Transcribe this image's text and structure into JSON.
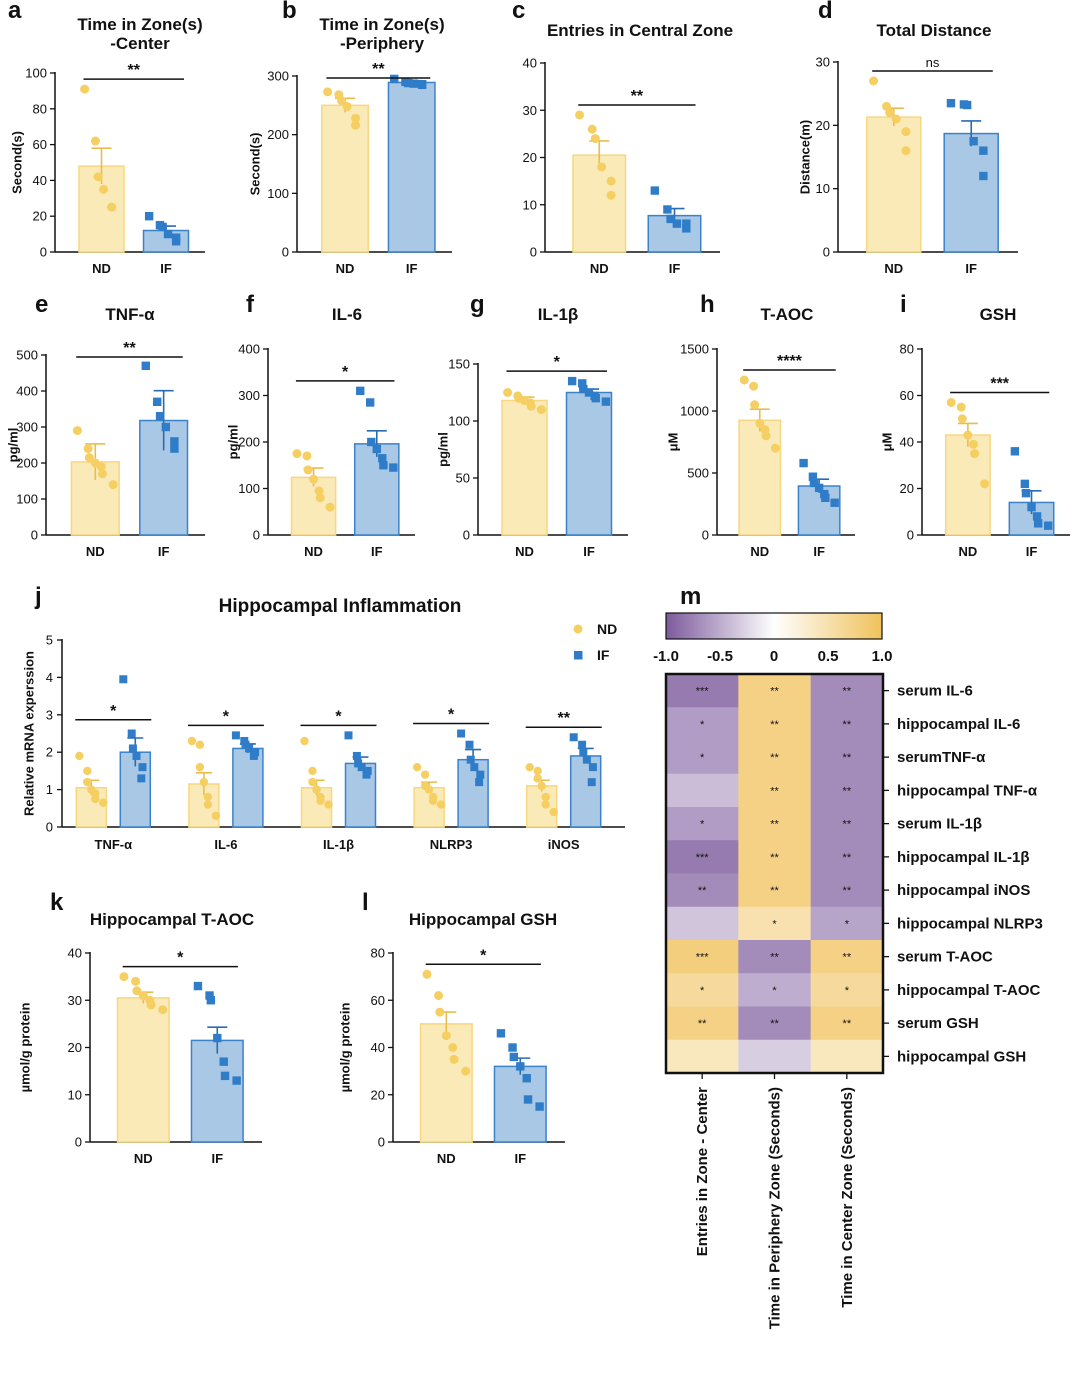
{
  "colors": {
    "ND": "#f7d77f",
    "ND_fill": "#faeab8",
    "IF": "#3b82c9",
    "IF_fill": "#a9c8e6",
    "low": "#7c5a9c",
    "mid": "#ffffff",
    "high": "#f0c25c"
  },
  "legend": {
    "nd": "ND",
    "if": "IF"
  },
  "chart_data": [
    {
      "id": "a",
      "letter": "a",
      "type": "bar",
      "title": [
        "Time in Zone(s)",
        "-Center"
      ],
      "ylabel": "Second(s)",
      "ylim": [
        0,
        100
      ],
      "yticks": [
        0,
        20,
        40,
        60,
        80,
        100
      ],
      "categories": [
        "ND",
        "IF"
      ],
      "values": [
        48,
        12
      ],
      "errors": [
        10,
        2.5
      ],
      "sig": "**",
      "points": [
        [
          91,
          62,
          42,
          35,
          25,
          25
        ],
        [
          20,
          15,
          14,
          10,
          8,
          6
        ]
      ]
    },
    {
      "id": "b",
      "letter": "b",
      "type": "bar",
      "title": [
        "Time in Zone(s)",
        "-Periphery"
      ],
      "ylabel": "Second(s)",
      "ylim": [
        0,
        300
      ],
      "yticks": [
        0,
        100,
        200,
        300
      ],
      "categories": [
        "ND",
        "IF"
      ],
      "values": [
        250,
        289
      ],
      "errors": [
        12,
        3
      ],
      "sig": "**",
      "points": [
        [
          273,
          268,
          258,
          248,
          228,
          216
        ],
        [
          295,
          290,
          288,
          287,
          286,
          285
        ]
      ]
    },
    {
      "id": "c",
      "letter": "c",
      "type": "bar",
      "title": [
        "Entries in Central Zone"
      ],
      "ylabel": "",
      "ylim": [
        0,
        40
      ],
      "yticks": [
        0,
        10,
        20,
        30,
        40
      ],
      "categories": [
        "ND",
        "IF"
      ],
      "values": [
        20.5,
        7.7
      ],
      "errors": [
        3,
        1.5
      ],
      "sig": "**",
      "points": [
        [
          29,
          26,
          24,
          18,
          15,
          12
        ],
        [
          13,
          9,
          7,
          6,
          6,
          5
        ]
      ]
    },
    {
      "id": "d",
      "letter": "d",
      "type": "bar",
      "title": [
        "Total Distance"
      ],
      "ylabel": "Distance(m)",
      "ylim": [
        0,
        30
      ],
      "yticks": [
        0,
        10,
        20,
        30
      ],
      "categories": [
        "ND",
        "IF"
      ],
      "values": [
        21.3,
        18.7
      ],
      "errors": [
        1.4,
        2
      ],
      "sig": "ns",
      "points": [
        [
          27,
          23,
          22,
          21,
          19,
          16
        ],
        [
          23.5,
          23.3,
          23.2,
          17.5,
          16,
          12
        ]
      ]
    },
    {
      "id": "e",
      "letter": "e",
      "type": "bar",
      "title": [
        "TNF-α"
      ],
      "ylabel": "pg/ml",
      "ylim": [
        0,
        500
      ],
      "yticks": [
        0,
        100,
        200,
        300,
        400,
        500
      ],
      "categories": [
        "ND",
        "IF"
      ],
      "values": [
        203,
        318
      ],
      "errors": [
        50,
        83
      ],
      "sig": "**",
      "points": [
        [
          290,
          240,
          215,
          200,
          190,
          170,
          140
        ],
        [
          470,
          370,
          330,
          300,
          260,
          240
        ]
      ]
    },
    {
      "id": "f",
      "letter": "f",
      "type": "bar",
      "title": [
        "IL-6"
      ],
      "ylabel": "pg/ml",
      "ylim": [
        0,
        400
      ],
      "yticks": [
        0,
        100,
        200,
        300,
        400
      ],
      "categories": [
        "ND",
        "IF"
      ],
      "values": [
        124,
        196
      ],
      "errors": [
        20,
        28
      ],
      "sig": "*",
      "points": [
        [
          175,
          170,
          140,
          120,
          95,
          80,
          60
        ],
        [
          310,
          285,
          200,
          185,
          165,
          150,
          145
        ]
      ]
    },
    {
      "id": "g",
      "letter": "g",
      "type": "bar",
      "title": [
        "IL-1β"
      ],
      "ylabel": "pg/ml",
      "ylim": [
        0,
        150
      ],
      "yticks": [
        0,
        50,
        100,
        150
      ],
      "categories": [
        "ND",
        "IF"
      ],
      "values": [
        118,
        125
      ],
      "errors": [
        3,
        3
      ],
      "sig": "*",
      "points": [
        [
          125,
          122,
          120,
          118,
          116,
          113,
          110
        ],
        [
          135,
          133,
          128,
          125,
          122,
          120,
          117
        ]
      ]
    },
    {
      "id": "h",
      "letter": "h",
      "type": "bar",
      "title": [
        "T-AOC"
      ],
      "ylabel": "μM",
      "ylim": [
        0,
        1500
      ],
      "yticks": [
        0,
        500,
        1000,
        1500
      ],
      "categories": [
        "ND",
        "IF"
      ],
      "values": [
        925,
        395
      ],
      "errors": [
        90,
        55
      ],
      "sig": "****",
      "points": [
        [
          1250,
          1200,
          1050,
          900,
          850,
          800,
          700
        ],
        [
          580,
          470,
          420,
          380,
          330,
          300,
          260
        ]
      ]
    },
    {
      "id": "i",
      "letter": "i",
      "type": "bar",
      "title": [
        "GSH"
      ],
      "ylabel": "μM",
      "ylim": [
        0,
        80
      ],
      "yticks": [
        0,
        20,
        40,
        60,
        80
      ],
      "categories": [
        "ND",
        "IF"
      ],
      "values": [
        43,
        14
      ],
      "errors": [
        5,
        5
      ],
      "sig": "***",
      "points": [
        [
          57,
          55,
          50,
          43,
          39,
          35,
          22
        ],
        [
          36,
          22,
          18,
          12,
          8,
          5,
          4
        ]
      ]
    },
    {
      "id": "k",
      "letter": "k",
      "type": "bar",
      "title": [
        "Hippocampal T-AOC"
      ],
      "ylabel": "µmol/g protein",
      "ylim": [
        0,
        40
      ],
      "yticks": [
        0,
        10,
        20,
        30,
        40
      ],
      "categories": [
        "ND",
        "IF"
      ],
      "values": [
        30.5,
        21.5
      ],
      "errors": [
        1.2,
        2.8
      ],
      "sig": "*",
      "points": [
        [
          35,
          34,
          32,
          31,
          30,
          29,
          28
        ],
        [
          33,
          31,
          30,
          22,
          17,
          14,
          13
        ]
      ]
    },
    {
      "id": "l",
      "letter": "l",
      "type": "bar",
      "title": [
        "Hippocampal GSH"
      ],
      "ylabel": "µmol/g protein",
      "ylim": [
        0,
        80
      ],
      "yticks": [
        0,
        20,
        40,
        60,
        80
      ],
      "categories": [
        "ND",
        "IF"
      ],
      "values": [
        50,
        32
      ],
      "errors": [
        5,
        3.5
      ],
      "sig": "*",
      "points": [
        [
          71,
          62,
          55,
          45,
          40,
          35,
          30
        ],
        [
          46,
          40,
          36,
          32,
          27,
          18,
          15
        ]
      ]
    },
    {
      "id": "j",
      "letter": "j",
      "type": "grouped-bar",
      "title": [
        "Hippocampal Inflammation"
      ],
      "ylabel": "Relative mRNA experssion",
      "ylim": [
        0,
        5
      ],
      "yticks": [
        0,
        1,
        2,
        3,
        4,
        5
      ],
      "categories": [
        "TNF-α",
        "IL-6",
        "IL-1β",
        "NLRP3",
        "iNOS"
      ],
      "series": [
        {
          "name": "ND",
          "values": [
            1.05,
            1.15,
            1.05,
            1.05,
            1.1
          ],
          "errors": [
            0.2,
            0.3,
            0.2,
            0.15,
            0.15
          ],
          "points": [
            [
              1.9,
              1.5,
              1.2,
              1.0,
              0.9,
              0.75,
              0.65
            ],
            [
              2.3,
              2.2,
              1.6,
              1.2,
              0.8,
              0.6,
              0.3
            ],
            [
              2.3,
              1.5,
              1.2,
              1.0,
              0.8,
              0.7,
              0.6
            ],
            [
              1.6,
              1.4,
              1.1,
              1.0,
              0.8,
              0.7,
              0.6
            ],
            [
              1.6,
              1.5,
              1.3,
              1.1,
              0.8,
              0.6,
              0.4
            ]
          ]
        },
        {
          "name": "IF",
          "values": [
            2.0,
            2.1,
            1.7,
            1.8,
            1.9
          ],
          "errors": [
            0.38,
            0.12,
            0.17,
            0.27,
            0.2
          ],
          "points": [
            [
              3.95,
              2.5,
              2.1,
              1.9,
              1.6,
              1.3
            ],
            [
              2.45,
              2.3,
              2.2,
              2.1,
              2.0,
              1.9
            ],
            [
              2.45,
              1.9,
              1.7,
              1.6,
              1.5,
              1.4
            ],
            [
              2.5,
              2.2,
              1.8,
              1.6,
              1.4,
              1.2
            ],
            [
              2.4,
              2.2,
              2.0,
              1.8,
              1.6,
              1.2
            ]
          ]
        }
      ],
      "sig": [
        "*",
        "*",
        "*",
        "*",
        "**"
      ]
    },
    {
      "id": "m",
      "letter": "m",
      "type": "heatmap",
      "rows": [
        "serum IL-6",
        "hippocampal IL-6",
        "serumTNF-α",
        "hippocampal TNF-α",
        "serum IL-1β",
        "hippocampal IL-1β",
        "hippocampal iNOS",
        "hippocampal NLRP3",
        "serum T-AOC",
        "hippocampal T-AOC",
        "serum GSH",
        "hippocampal GSH"
      ],
      "columns": [
        "Entries in Zone - Center",
        "Time in Periphery Zone (Seconds)",
        "Time in Center Zone (Seconds)"
      ],
      "values": [
        [
          -0.8,
          0.75,
          -0.7
        ],
        [
          -0.6,
          0.75,
          -0.7
        ],
        [
          -0.6,
          0.75,
          -0.7
        ],
        [
          -0.4,
          0.75,
          -0.7
        ],
        [
          -0.6,
          0.75,
          -0.7
        ],
        [
          -0.8,
          0.75,
          -0.7
        ],
        [
          -0.7,
          0.75,
          -0.7
        ],
        [
          -0.35,
          0.5,
          -0.55
        ],
        [
          0.8,
          -0.7,
          0.75
        ],
        [
          0.6,
          -0.5,
          0.6
        ],
        [
          0.75,
          -0.7,
          0.75
        ],
        [
          0.4,
          -0.3,
          0.4
        ]
      ],
      "stars": [
        [
          "***",
          "**",
          "**"
        ],
        [
          "*",
          "**",
          "**"
        ],
        [
          "*",
          "**",
          "**"
        ],
        [
          "",
          "**",
          "**"
        ],
        [
          "*",
          "**",
          "**"
        ],
        [
          "***",
          "**",
          "**"
        ],
        [
          "**",
          "**",
          "**"
        ],
        [
          "",
          "*",
          "*"
        ],
        [
          "***",
          "**",
          "**"
        ],
        [
          "*",
          "*",
          "*"
        ],
        [
          "**",
          "**",
          "**"
        ],
        [
          "",
          "",
          ""
        ]
      ],
      "colorbar_ticks": [
        "-1.0",
        "-0.5",
        "0",
        "0.5",
        "1.0"
      ],
      "vmin": -1,
      "vmax": 1
    }
  ]
}
